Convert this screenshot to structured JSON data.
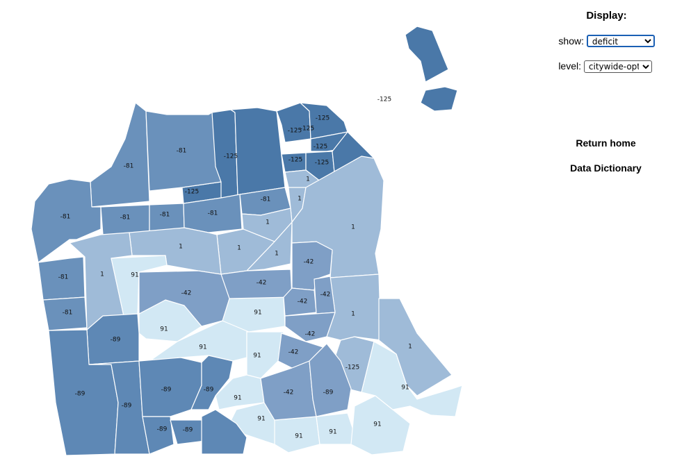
{
  "panel": {
    "title": "Display:",
    "show_label": "show:",
    "show_value": "deficit",
    "level_label": "level:",
    "level_value": "citywide-optG",
    "home_link": "Return home",
    "dictionary_link": "Data Dictionary"
  },
  "map": {
    "legend_colors": {
      "-125": "#4a78a8",
      "-89": "#5e88b5",
      "-81": "#6a91bb",
      "-42": "#7f9fc6",
      "1": "#9fbbd8",
      "91": "#d2e8f4"
    },
    "regions": [
      {
        "id": "r1",
        "label": "-125"
      },
      {
        "id": "r2",
        "label": "-125"
      },
      {
        "id": "r3",
        "label": "-125"
      },
      {
        "id": "r4",
        "label": "-125"
      },
      {
        "id": "r5",
        "label": "-125"
      },
      {
        "id": "r6",
        "label": "-125"
      },
      {
        "id": "r7",
        "label": "-125"
      },
      {
        "id": "r8",
        "label": "-125"
      },
      {
        "id": "r9",
        "label": "-125"
      },
      {
        "id": "r10",
        "label": "-125"
      },
      {
        "id": "r11",
        "label": "-81"
      },
      {
        "id": "r12",
        "label": "-81"
      },
      {
        "id": "r13",
        "label": "-81"
      },
      {
        "id": "r14",
        "label": "-81"
      },
      {
        "id": "r15",
        "label": "-81"
      },
      {
        "id": "r16",
        "label": "-81"
      },
      {
        "id": "r17",
        "label": "-81"
      },
      {
        "id": "r18",
        "label": "-81"
      },
      {
        "id": "r19",
        "label": "-81"
      },
      {
        "id": "r20",
        "label": "1"
      },
      {
        "id": "r21",
        "label": "1"
      },
      {
        "id": "r22",
        "label": "1"
      },
      {
        "id": "r23",
        "label": "1"
      },
      {
        "id": "r24",
        "label": "1"
      },
      {
        "id": "r25",
        "label": "1"
      },
      {
        "id": "r26",
        "label": "1"
      },
      {
        "id": "r27",
        "label": "1"
      },
      {
        "id": "r28",
        "label": "1"
      },
      {
        "id": "r29",
        "label": "1"
      },
      {
        "id": "r30",
        "label": "91"
      },
      {
        "id": "r31",
        "label": "91"
      },
      {
        "id": "r32",
        "label": "91"
      },
      {
        "id": "r33",
        "label": "91"
      },
      {
        "id": "r34",
        "label": "91"
      },
      {
        "id": "r35",
        "label": "91"
      },
      {
        "id": "r36",
        "label": "91"
      },
      {
        "id": "r37",
        "label": "91"
      },
      {
        "id": "r38",
        "label": "91"
      },
      {
        "id": "r39",
        "label": "91"
      },
      {
        "id": "r40",
        "label": "91"
      },
      {
        "id": "r41",
        "label": "-42"
      },
      {
        "id": "r42",
        "label": "-42"
      },
      {
        "id": "r43",
        "label": "-42"
      },
      {
        "id": "r44",
        "label": "-42"
      },
      {
        "id": "r45",
        "label": "-42"
      },
      {
        "id": "r46",
        "label": "-42"
      },
      {
        "id": "r47",
        "label": "-42"
      },
      {
        "id": "r48",
        "label": "-42"
      },
      {
        "id": "r49",
        "label": "-89"
      },
      {
        "id": "r50",
        "label": "-89"
      },
      {
        "id": "r51",
        "label": "-89"
      },
      {
        "id": "r52",
        "label": "-89"
      },
      {
        "id": "r53",
        "label": "-89"
      },
      {
        "id": "r54",
        "label": "-89"
      },
      {
        "id": "r55",
        "label": "-89"
      },
      {
        "id": "r56",
        "label": "-89"
      }
    ]
  }
}
